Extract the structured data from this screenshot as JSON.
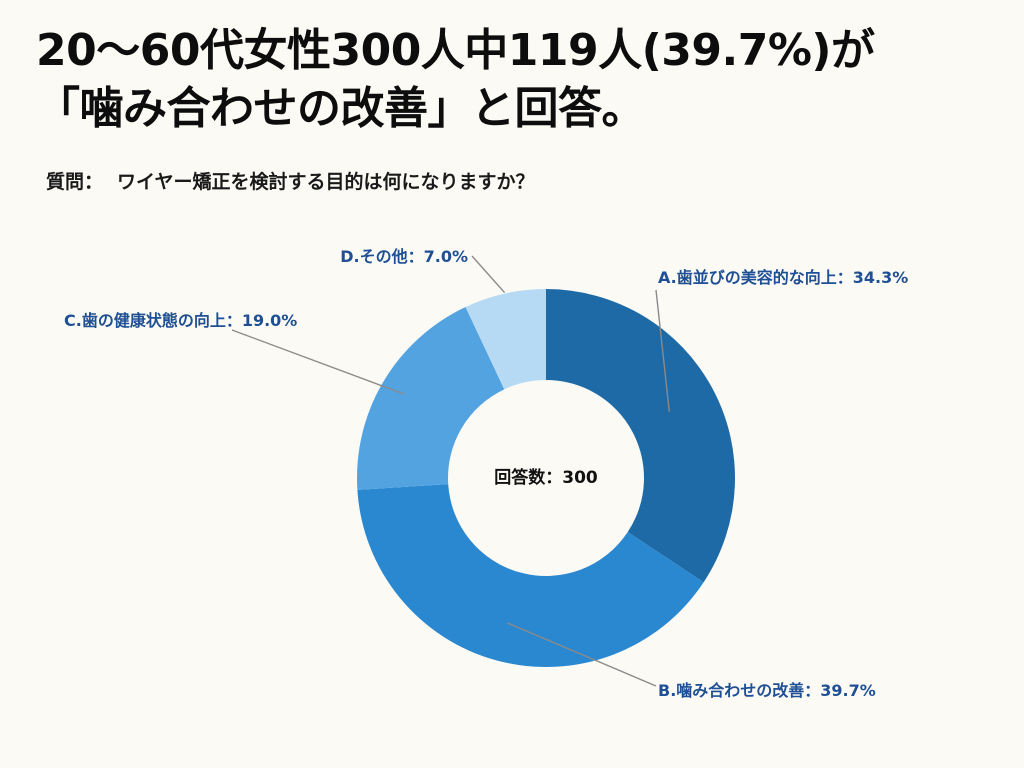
{
  "title": {
    "line1": "20〜60代女性300人中119人(39.7%)が",
    "line2": "「噛み合わせの改善」と回答。"
  },
  "question": {
    "label": "質問：",
    "text": "ワイヤー矯正を検討する目的は何になりますか？"
  },
  "chart_data": {
    "type": "pie",
    "donut": true,
    "center_label": "回答数：300",
    "categories": [
      "A.歯並びの美容的な向上",
      "B.噛み合わせの改善",
      "C.歯の健康状態の向上",
      "D.その他"
    ],
    "values": [
      34.3,
      39.7,
      19.0,
      7.0
    ],
    "labels": [
      "A.歯並びの美容的な向上：34.3%",
      "B.噛み合わせの改善：39.7%",
      "C.歯の健康状態の向上：19.0%",
      "D.その他：7.0%"
    ],
    "colors": [
      "#1e6aa7",
      "#2a88d0",
      "#54a3e1",
      "#b7daf4"
    ],
    "label_color": "#1f4f94",
    "leader_color": "#8a8a8a"
  }
}
